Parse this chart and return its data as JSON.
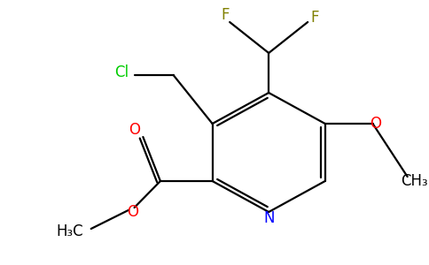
{
  "background_color": "#ffffff",
  "figsize": [
    4.84,
    3.0
  ],
  "dpi": 100,
  "lw": 1.6,
  "colors": {
    "bond": "#000000",
    "N": "#0000ff",
    "O": "#ff0000",
    "Cl": "#00cc00",
    "F": "#808000",
    "C": "#000000"
  },
  "fontsize": 12
}
